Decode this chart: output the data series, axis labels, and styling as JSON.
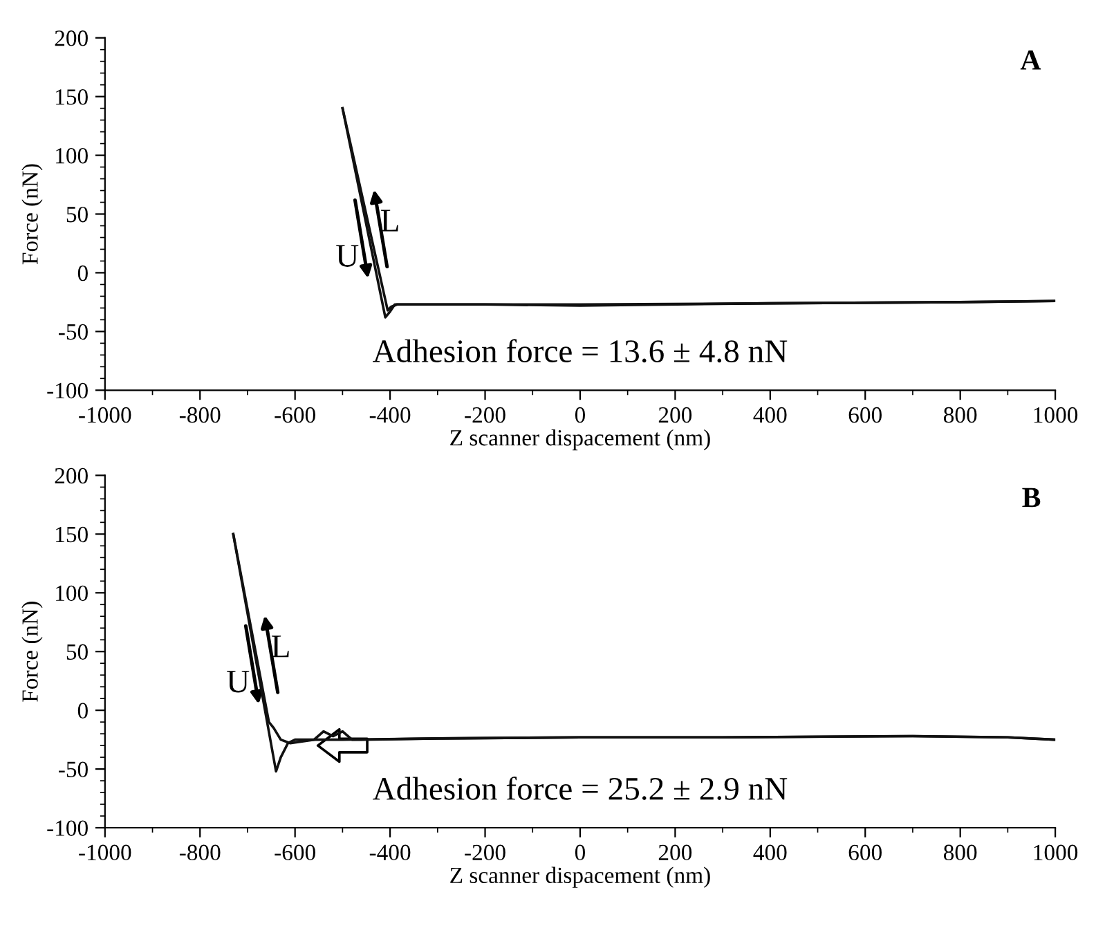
{
  "chart_data": [
    {
      "type": "line",
      "title": "A",
      "xlabel": "Z scanner dispacement (nm)",
      "ylabel": "Force (nN)",
      "series": [
        {
          "color": "#111111",
          "x": [
            -500,
            -410,
            -400,
            -390,
            -200,
            0,
            400,
            800,
            1000
          ],
          "values": [
            140,
            -38,
            -33,
            -27,
            -27,
            -27,
            -26,
            -25,
            -24
          ]
        },
        {
          "color": "#111111",
          "x": [
            -500,
            -405,
            -398,
            -385,
            -200,
            0,
            400,
            800,
            1000
          ],
          "values": [
            140,
            -32,
            -29,
            -27,
            -27,
            -28,
            -26,
            -25,
            -24
          ]
        }
      ],
      "annotations": [
        "U",
        "L",
        "Adhesion force = 13.6 ± 4.8 nN"
      ],
      "xlim": [
        -1000,
        1000
      ],
      "ylim": [
        -100,
        200
      ],
      "xticks": [
        -1000,
        {
          "value": -900,
          "label": null
        },
        -800,
        {
          "value": -700,
          "label": null
        },
        -600,
        {
          "value": -500,
          "label": null
        },
        -400,
        {
          "value": -300,
          "label": null
        },
        -200,
        {
          "value": -100,
          "label": null
        },
        0,
        {
          "value": 100,
          "label": null
        },
        200,
        {
          "value": 300,
          "label": null
        },
        400,
        {
          "value": 500,
          "label": null
        },
        600,
        {
          "value": 700,
          "label": null
        },
        800,
        {
          "value": 900,
          "label": null
        },
        1000
      ],
      "yticks": [
        -100,
        {
          "value": -90,
          "label": null
        },
        {
          "value": -80,
          "label": null
        },
        {
          "value": -70,
          "label": null
        },
        {
          "value": -60,
          "label": null
        },
        -50,
        {
          "value": -40,
          "label": null
        },
        {
          "value": -30,
          "label": null
        },
        {
          "value": -20,
          "label": null
        },
        {
          "value": -10,
          "label": null
        },
        0,
        {
          "value": 10,
          "label": null
        },
        {
          "value": 20,
          "label": null
        },
        {
          "value": 30,
          "label": null
        },
        {
          "value": 40,
          "label": null
        },
        50,
        {
          "value": 60,
          "label": null
        },
        {
          "value": 70,
          "label": null
        },
        {
          "value": 80,
          "label": null
        },
        {
          "value": 90,
          "label": null
        },
        100,
        {
          "value": 110,
          "label": null
        },
        {
          "value": 120,
          "label": null
        },
        {
          "value": 130,
          "label": null
        },
        {
          "value": 140,
          "label": null
        },
        150,
        {
          "value": 160,
          "label": null
        },
        {
          "value": 170,
          "label": null
        },
        {
          "value": 180,
          "label": null
        },
        {
          "value": 190,
          "label": null
        },
        200
      ],
      "grid": false,
      "legend": false
    },
    {
      "type": "line",
      "title": "B",
      "xlabel": "Z scanner dispacement (nm)",
      "ylabel": "Force (nN)",
      "series": [
        {
          "color": "#111111",
          "x": [
            -730,
            -640,
            -630,
            -615,
            -600,
            -500,
            -300,
            0,
            300,
            700,
            900,
            1000
          ],
          "values": [
            150,
            -52,
            -40,
            -28,
            -25,
            -25,
            -24,
            -23,
            -23,
            -22,
            -23,
            -25
          ]
        },
        {
          "color": "#111111",
          "x": [
            -730,
            -655,
            -645,
            -630,
            -610,
            -560,
            -540,
            -520,
            -500,
            -480,
            -460,
            -300,
            0,
            300,
            700,
            900,
            1000
          ],
          "values": [
            150,
            -10,
            -15,
            -25,
            -28,
            -25,
            -18,
            -22,
            -18,
            -25,
            -25,
            -24,
            -23,
            -23,
            -22,
            -23,
            -25
          ]
        }
      ],
      "annotations": [
        "U",
        "L",
        "Adhesion force = 25.2 ± 2.9 nN"
      ],
      "xlim": [
        -1000,
        1000
      ],
      "ylim": [
        -100,
        200
      ],
      "xticks": [
        -1000,
        {
          "value": -900,
          "label": null
        },
        -800,
        {
          "value": -700,
          "label": null
        },
        -600,
        {
          "value": -500,
          "label": null
        },
        -400,
        {
          "value": -300,
          "label": null
        },
        -200,
        {
          "value": -100,
          "label": null
        },
        0,
        {
          "value": 100,
          "label": null
        },
        200,
        {
          "value": 300,
          "label": null
        },
        400,
        {
          "value": 500,
          "label": null
        },
        600,
        {
          "value": 700,
          "label": null
        },
        800,
        {
          "value": 900,
          "label": null
        },
        1000
      ],
      "yticks": [
        -100,
        {
          "value": -90,
          "label": null
        },
        {
          "value": -80,
          "label": null
        },
        {
          "value": -70,
          "label": null
        },
        {
          "value": -60,
          "label": null
        },
        -50,
        {
          "value": -40,
          "label": null
        },
        {
          "value": -30,
          "label": null
        },
        {
          "value": -20,
          "label": null
        },
        {
          "value": -10,
          "label": null
        },
        0,
        {
          "value": 10,
          "label": null
        },
        {
          "value": 20,
          "label": null
        },
        {
          "value": 30,
          "label": null
        },
        {
          "value": 40,
          "label": null
        },
        50,
        {
          "value": 60,
          "label": null
        },
        {
          "value": 70,
          "label": null
        },
        {
          "value": 80,
          "label": null
        },
        {
          "value": 90,
          "label": null
        },
        100,
        {
          "value": 110,
          "label": null
        },
        {
          "value": 120,
          "label": null
        },
        {
          "value": 130,
          "label": null
        },
        {
          "value": 140,
          "label": null
        },
        150,
        {
          "value": 160,
          "label": null
        },
        {
          "value": 170,
          "label": null
        },
        {
          "value": 180,
          "label": null
        },
        {
          "value": 190,
          "label": null
        },
        200
      ],
      "grid": false,
      "legend": false
    }
  ]
}
